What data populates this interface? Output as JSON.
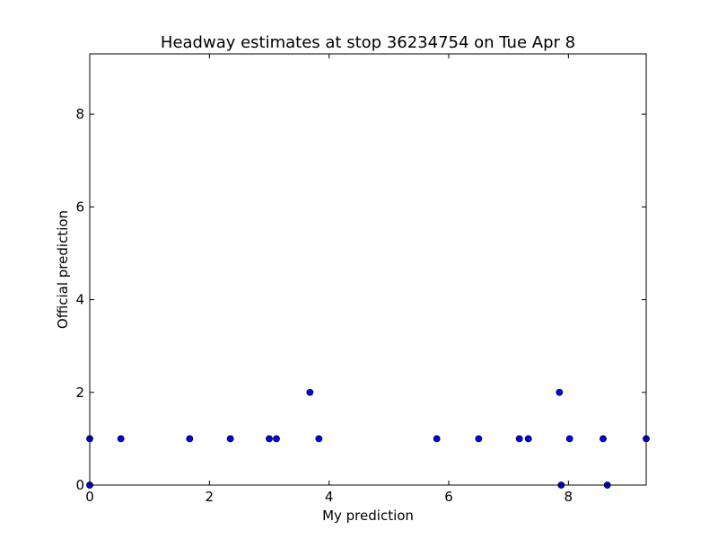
{
  "chart_data": {
    "type": "scatter",
    "title": "Headway estimates at stop 36234754 on Tue Apr 8",
    "xlabel": "My prediction",
    "ylabel": "Official prediction",
    "xlim": [
      0,
      9.3
    ],
    "ylim": [
      0,
      9.3
    ],
    "xticks": [
      0,
      2,
      4,
      6,
      8
    ],
    "yticks": [
      0,
      2,
      4,
      6,
      8
    ],
    "grid": false,
    "legend": "none",
    "marker_color": "#0000ff",
    "marker_edge": "#000000",
    "points": [
      {
        "x": 0.0,
        "y": 1
      },
      {
        "x": 0.0,
        "y": 0
      },
      {
        "x": 0.52,
        "y": 1
      },
      {
        "x": 1.67,
        "y": 1
      },
      {
        "x": 2.35,
        "y": 1
      },
      {
        "x": 3.0,
        "y": 1
      },
      {
        "x": 3.12,
        "y": 1
      },
      {
        "x": 3.68,
        "y": 2
      },
      {
        "x": 3.83,
        "y": 1
      },
      {
        "x": 5.8,
        "y": 1
      },
      {
        "x": 6.5,
        "y": 1
      },
      {
        "x": 7.18,
        "y": 1
      },
      {
        "x": 7.33,
        "y": 1
      },
      {
        "x": 7.85,
        "y": 2
      },
      {
        "x": 7.88,
        "y": 0
      },
      {
        "x": 8.02,
        "y": 1
      },
      {
        "x": 8.58,
        "y": 1
      },
      {
        "x": 8.65,
        "y": 0
      },
      {
        "x": 9.3,
        "y": 1
      }
    ]
  }
}
